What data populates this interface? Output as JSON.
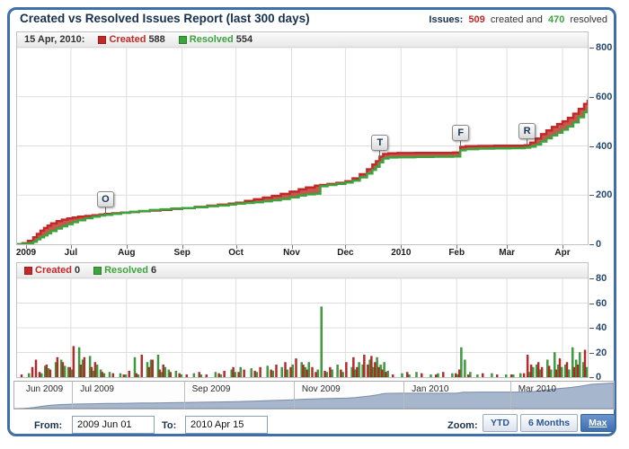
{
  "header": {
    "title": "Created vs Resolved Issues Report (last 300 days)",
    "issues_label": "Issues:",
    "created_count": "509",
    "created_text": "created and",
    "resolved_count": "470",
    "resolved_text": "resolved"
  },
  "main_legend": {
    "date": "15 Apr, 2010:",
    "created_label": "Created",
    "created_value": "588",
    "resolved_label": "Resolved",
    "resolved_value": "554"
  },
  "bar_legend": {
    "created_label": "Created",
    "created_value": "0",
    "resolved_label": "Resolved",
    "resolved_value": "6"
  },
  "colors": {
    "created": "#c32829",
    "resolved": "#3da33d",
    "created_fill": "#c2453a",
    "grid": "#dcdfdc",
    "widget_border": "#3e6fa8",
    "nav_fill": "#a6b6cc",
    "nav_line": "#7a8ca8"
  },
  "chart_data": [
    {
      "type": "area",
      "title": "Created vs Resolved Issues Report (last 300 days)",
      "x_unit": "days since 2009-06-01",
      "ylim": [
        0,
        800
      ],
      "y_ticks": [
        0,
        200,
        400,
        600,
        800
      ],
      "grid": true,
      "legend_position": "top",
      "series_names": [
        "Created",
        "Resolved"
      ],
      "x_axis_labels": [
        {
          "text": "2009",
          "day": 5
        },
        {
          "text": "Jul",
          "day": 30
        },
        {
          "text": "Aug",
          "day": 61
        },
        {
          "text": "Sep",
          "day": 92
        },
        {
          "text": "Oct",
          "day": 122
        },
        {
          "text": "Nov",
          "day": 153
        },
        {
          "text": "Dec",
          "day": 183
        },
        {
          "text": "2010",
          "day": 214
        },
        {
          "text": "Feb",
          "day": 245
        },
        {
          "text": "Mar",
          "day": 273
        },
        {
          "text": "Apr",
          "day": 304
        }
      ],
      "month_grid_days": [
        30,
        61,
        92,
        122,
        153,
        183,
        214,
        245,
        273,
        304
      ],
      "flags": [
        {
          "label": "O",
          "day": 49
        },
        {
          "label": "T",
          "day": 202
        },
        {
          "label": "F",
          "day": 247
        },
        {
          "label": "R",
          "day": 284
        }
      ],
      "points": [
        [
          0,
          0,
          0
        ],
        [
          3,
          4,
          1
        ],
        [
          6,
          14,
          4
        ],
        [
          9,
          28,
          10
        ],
        [
          11,
          42,
          20
        ],
        [
          13,
          55,
          28
        ],
        [
          15,
          66,
          36
        ],
        [
          17,
          76,
          45
        ],
        [
          19,
          85,
          54
        ],
        [
          22,
          94,
          64
        ],
        [
          25,
          100,
          73
        ],
        [
          28,
          105,
          82
        ],
        [
          31,
          109,
          90
        ],
        [
          34,
          112,
          98
        ],
        [
          38,
          115,
          106
        ],
        [
          42,
          118,
          112
        ],
        [
          46,
          121,
          117
        ],
        [
          49,
          123,
          120
        ],
        [
          53,
          126,
          124
        ],
        [
          58,
          129,
          128
        ],
        [
          63,
          131,
          132
        ],
        [
          68,
          134,
          135
        ],
        [
          74,
          137,
          139
        ],
        [
          80,
          140,
          142
        ],
        [
          86,
          144,
          145
        ],
        [
          92,
          147,
          147
        ],
        [
          99,
          152,
          151
        ],
        [
          106,
          157,
          155
        ],
        [
          112,
          161,
          158
        ],
        [
          118,
          165,
          162
        ],
        [
          122,
          169,
          165
        ],
        [
          127,
          176,
          168
        ],
        [
          132,
          183,
          171
        ],
        [
          137,
          190,
          175
        ],
        [
          142,
          197,
          179
        ],
        [
          147,
          205,
          184
        ],
        [
          152,
          214,
          191
        ],
        [
          157,
          224,
          198
        ],
        [
          161,
          231,
          203
        ],
        [
          166,
          238,
          206
        ],
        [
          169,
          241,
          236
        ],
        [
          173,
          245,
          241
        ],
        [
          178,
          250,
          246
        ],
        [
          183,
          256,
          251
        ],
        [
          187,
          268,
          259
        ],
        [
          191,
          285,
          272
        ],
        [
          195,
          305,
          288
        ],
        [
          198,
          324,
          303
        ],
        [
          200,
          338,
          315
        ],
        [
          202,
          356,
          333
        ],
        [
          204,
          367,
          349
        ],
        [
          207,
          370,
          353
        ],
        [
          212,
          371,
          354
        ],
        [
          222,
          372,
          355
        ],
        [
          232,
          372,
          356
        ],
        [
          243,
          373,
          357
        ],
        [
          247,
          396,
          382
        ],
        [
          250,
          399,
          387
        ],
        [
          257,
          400,
          389
        ],
        [
          266,
          401,
          390
        ],
        [
          275,
          401,
          391
        ],
        [
          283,
          403,
          393
        ],
        [
          286,
          413,
          397
        ],
        [
          289,
          430,
          406
        ],
        [
          292,
          448,
          418
        ],
        [
          295,
          463,
          431
        ],
        [
          298,
          477,
          443
        ],
        [
          301,
          489,
          454
        ],
        [
          304,
          500,
          466
        ],
        [
          307,
          514,
          479
        ],
        [
          310,
          531,
          496
        ],
        [
          313,
          551,
          517
        ],
        [
          316,
          571,
          537
        ],
        [
          318,
          588,
          554
        ]
      ]
    },
    {
      "type": "bar",
      "title": "Daily created and resolved issues",
      "x_unit": "days since 2009-06-01",
      "ylim": [
        0,
        80
      ],
      "y_ticks": [
        0,
        20,
        40,
        60,
        80
      ],
      "series_names": [
        "Created",
        "Resolved"
      ],
      "points": [
        [
          3,
          2,
          0
        ],
        [
          6,
          0,
          3
        ],
        [
          9,
          8,
          0
        ],
        [
          11,
          14,
          0
        ],
        [
          13,
          4,
          3
        ],
        [
          15,
          0,
          9
        ],
        [
          17,
          10,
          7
        ],
        [
          19,
          6,
          0
        ],
        [
          21,
          0,
          12
        ],
        [
          23,
          16,
          0
        ],
        [
          24,
          0,
          14
        ],
        [
          26,
          12,
          9
        ],
        [
          28,
          0,
          8
        ],
        [
          30,
          8,
          6
        ],
        [
          32,
          25,
          0
        ],
        [
          34,
          0,
          24
        ],
        [
          36,
          10,
          14
        ],
        [
          38,
          16,
          0
        ],
        [
          40,
          0,
          17
        ],
        [
          42,
          8,
          5
        ],
        [
          44,
          12,
          10
        ],
        [
          46,
          0,
          6
        ],
        [
          48,
          4,
          3
        ],
        [
          51,
          0,
          4
        ],
        [
          54,
          3,
          0
        ],
        [
          57,
          0,
          3
        ],
        [
          60,
          2,
          2
        ],
        [
          63,
          5,
          0
        ],
        [
          65,
          0,
          16
        ],
        [
          67,
          3,
          2
        ],
        [
          70,
          18,
          0
        ],
        [
          72,
          0,
          12
        ],
        [
          74,
          8,
          14
        ],
        [
          76,
          14,
          0
        ],
        [
          78,
          0,
          18
        ],
        [
          80,
          6,
          4
        ],
        [
          82,
          10,
          8
        ],
        [
          84,
          0,
          6
        ],
        [
          86,
          4,
          0
        ],
        [
          88,
          0,
          5
        ],
        [
          91,
          3,
          2
        ],
        [
          95,
          2,
          0
        ],
        [
          98,
          0,
          3
        ],
        [
          102,
          4,
          2
        ],
        [
          106,
          2,
          0
        ],
        [
          110,
          0,
          4
        ],
        [
          113,
          3,
          2
        ],
        [
          116,
          5,
          0
        ],
        [
          119,
          0,
          6
        ],
        [
          121,
          8,
          4
        ],
        [
          124,
          4,
          8
        ],
        [
          127,
          6,
          0
        ],
        [
          130,
          0,
          7
        ],
        [
          133,
          5,
          4
        ],
        [
          136,
          8,
          0
        ],
        [
          139,
          0,
          9
        ],
        [
          142,
          6,
          5
        ],
        [
          145,
          10,
          0
        ],
        [
          147,
          0,
          8
        ],
        [
          150,
          12,
          6
        ],
        [
          153,
          8,
          10
        ],
        [
          156,
          15,
          0
        ],
        [
          158,
          0,
          12
        ],
        [
          160,
          10,
          8
        ],
        [
          162,
          6,
          12
        ],
        [
          165,
          8,
          0
        ],
        [
          167,
          4,
          6
        ],
        [
          169,
          0,
          57
        ],
        [
          172,
          5,
          4
        ],
        [
          175,
          8,
          6
        ],
        [
          178,
          0,
          10
        ],
        [
          181,
          6,
          4
        ],
        [
          184,
          12,
          0
        ],
        [
          186,
          0,
          8
        ],
        [
          188,
          16,
          6
        ],
        [
          190,
          8,
          12
        ],
        [
          192,
          0,
          10
        ],
        [
          194,
          18,
          0
        ],
        [
          196,
          10,
          14
        ],
        [
          198,
          17,
          8
        ],
        [
          200,
          12,
          16
        ],
        [
          202,
          8,
          10
        ],
        [
          204,
          6,
          12
        ],
        [
          206,
          4,
          5
        ],
        [
          210,
          2,
          0
        ],
        [
          214,
          0,
          3
        ],
        [
          218,
          4,
          2
        ],
        [
          222,
          0,
          4
        ],
        [
          226,
          3,
          0
        ],
        [
          230,
          0,
          2
        ],
        [
          234,
          2,
          3
        ],
        [
          238,
          4,
          0
        ],
        [
          242,
          0,
          3
        ],
        [
          245,
          3,
          2
        ],
        [
          247,
          6,
          24
        ],
        [
          249,
          0,
          14
        ],
        [
          252,
          2,
          4
        ],
        [
          256,
          0,
          2
        ],
        [
          260,
          3,
          0
        ],
        [
          264,
          0,
          3
        ],
        [
          268,
          2,
          0
        ],
        [
          272,
          0,
          2
        ],
        [
          276,
          2,
          2
        ],
        [
          280,
          0,
          3
        ],
        [
          283,
          3,
          0
        ],
        [
          285,
          18,
          4
        ],
        [
          287,
          10,
          8
        ],
        [
          289,
          0,
          10
        ],
        [
          291,
          12,
          6
        ],
        [
          293,
          8,
          0
        ],
        [
          295,
          0,
          14
        ],
        [
          297,
          9,
          6
        ],
        [
          299,
          0,
          20
        ],
        [
          301,
          6,
          10
        ],
        [
          303,
          15,
          8
        ],
        [
          305,
          0,
          10
        ],
        [
          307,
          12,
          6
        ],
        [
          309,
          0,
          24
        ],
        [
          311,
          8,
          14
        ],
        [
          313,
          10,
          20
        ],
        [
          315,
          0,
          12
        ],
        [
          317,
          22,
          8
        ],
        [
          318,
          0,
          6
        ]
      ]
    }
  ],
  "navigator": {
    "labels": [
      {
        "text": "Jun 2009",
        "day": 3
      },
      {
        "text": "Jul 2009",
        "day": 33
      },
      {
        "text": "Sep 2009",
        "day": 95
      },
      {
        "text": "Nov 2009",
        "day": 156
      },
      {
        "text": "Jan 2010",
        "day": 217
      },
      {
        "text": "Mar 2010",
        "day": 276
      }
    ],
    "divider_days": [
      30,
      92,
      153,
      214,
      273
    ]
  },
  "controls": {
    "from_label": "From:",
    "from_value": "2009 Jun 01",
    "to_label": "To:",
    "to_value": "2010 Apr 15",
    "zoom_label": "Zoom:",
    "zoom_buttons": [
      {
        "label": "YTD",
        "active": false
      },
      {
        "label": "6 Months",
        "active": false
      },
      {
        "label": "Max",
        "active": true
      }
    ]
  }
}
